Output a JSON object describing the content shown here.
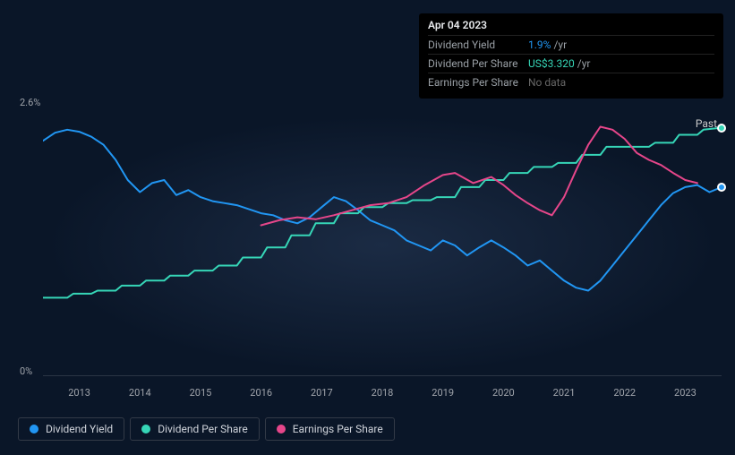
{
  "chart": {
    "type": "line",
    "background_color": "#0a1628",
    "plot_bg_glow": "rgba(34,52,80,0.7)",
    "text_color": "#a0a4ab",
    "axis_color": "#2a3544",
    "ylim": [
      0,
      2.6
    ],
    "y_ticks": [
      {
        "v": 2.6,
        "label": "2.6%"
      },
      {
        "v": 0,
        "label": "0%"
      }
    ],
    "x_domain_years": [
      2012.4,
      2023.6
    ],
    "x_labels": [
      "2013",
      "2014",
      "2015",
      "2016",
      "2017",
      "2018",
      "2019",
      "2020",
      "2021",
      "2022",
      "2023"
    ],
    "past_label": "Past",
    "marker_ring_color": "#ffffff",
    "series": {
      "dividend_yield": {
        "label": "Dividend Yield",
        "color": "#2196f3",
        "line_width": 2,
        "points": [
          [
            2012.4,
            2.34
          ],
          [
            2012.6,
            2.42
          ],
          [
            2012.8,
            2.45
          ],
          [
            2013.0,
            2.43
          ],
          [
            2013.2,
            2.38
          ],
          [
            2013.4,
            2.3
          ],
          [
            2013.6,
            2.15
          ],
          [
            2013.8,
            1.95
          ],
          [
            2014.0,
            1.83
          ],
          [
            2014.2,
            1.92
          ],
          [
            2014.4,
            1.95
          ],
          [
            2014.6,
            1.8
          ],
          [
            2014.8,
            1.85
          ],
          [
            2015.0,
            1.78
          ],
          [
            2015.2,
            1.74
          ],
          [
            2015.4,
            1.72
          ],
          [
            2015.6,
            1.7
          ],
          [
            2015.8,
            1.66
          ],
          [
            2016.0,
            1.62
          ],
          [
            2016.2,
            1.6
          ],
          [
            2016.4,
            1.55
          ],
          [
            2016.6,
            1.52
          ],
          [
            2016.8,
            1.58
          ],
          [
            2017.0,
            1.68
          ],
          [
            2017.2,
            1.78
          ],
          [
            2017.4,
            1.74
          ],
          [
            2017.6,
            1.65
          ],
          [
            2017.8,
            1.55
          ],
          [
            2018.0,
            1.5
          ],
          [
            2018.2,
            1.45
          ],
          [
            2018.4,
            1.35
          ],
          [
            2018.6,
            1.3
          ],
          [
            2018.8,
            1.25
          ],
          [
            2019.0,
            1.35
          ],
          [
            2019.2,
            1.3
          ],
          [
            2019.4,
            1.2
          ],
          [
            2019.6,
            1.28
          ],
          [
            2019.8,
            1.35
          ],
          [
            2020.0,
            1.28
          ],
          [
            2020.2,
            1.2
          ],
          [
            2020.4,
            1.1
          ],
          [
            2020.6,
            1.15
          ],
          [
            2020.8,
            1.05
          ],
          [
            2021.0,
            0.95
          ],
          [
            2021.2,
            0.88
          ],
          [
            2021.4,
            0.85
          ],
          [
            2021.6,
            0.95
          ],
          [
            2021.8,
            1.1
          ],
          [
            2022.0,
            1.25
          ],
          [
            2022.2,
            1.4
          ],
          [
            2022.4,
            1.55
          ],
          [
            2022.6,
            1.7
          ],
          [
            2022.8,
            1.82
          ],
          [
            2023.0,
            1.88
          ],
          [
            2023.2,
            1.9
          ],
          [
            2023.4,
            1.83
          ],
          [
            2023.6,
            1.88
          ]
        ]
      },
      "dividend_per_share": {
        "label": "Dividend Per Share",
        "color": "#36d6b7",
        "line_width": 2,
        "points": [
          [
            2012.4,
            0.78
          ],
          [
            2012.8,
            0.78
          ],
          [
            2012.9,
            0.82
          ],
          [
            2013.2,
            0.82
          ],
          [
            2013.3,
            0.85
          ],
          [
            2013.6,
            0.85
          ],
          [
            2013.7,
            0.9
          ],
          [
            2014.0,
            0.9
          ],
          [
            2014.1,
            0.95
          ],
          [
            2014.4,
            0.95
          ],
          [
            2014.5,
            1.0
          ],
          [
            2014.8,
            1.0
          ],
          [
            2014.9,
            1.05
          ],
          [
            2015.2,
            1.05
          ],
          [
            2015.3,
            1.1
          ],
          [
            2015.6,
            1.1
          ],
          [
            2015.7,
            1.18
          ],
          [
            2016.0,
            1.18
          ],
          [
            2016.1,
            1.28
          ],
          [
            2016.4,
            1.28
          ],
          [
            2016.5,
            1.4
          ],
          [
            2016.8,
            1.4
          ],
          [
            2016.9,
            1.52
          ],
          [
            2017.2,
            1.52
          ],
          [
            2017.3,
            1.62
          ],
          [
            2017.6,
            1.62
          ],
          [
            2017.7,
            1.68
          ],
          [
            2018.0,
            1.68
          ],
          [
            2018.1,
            1.72
          ],
          [
            2018.4,
            1.72
          ],
          [
            2018.5,
            1.75
          ],
          [
            2018.8,
            1.75
          ],
          [
            2018.9,
            1.78
          ],
          [
            2019.2,
            1.78
          ],
          [
            2019.3,
            1.88
          ],
          [
            2019.6,
            1.88
          ],
          [
            2019.7,
            1.95
          ],
          [
            2020.0,
            1.95
          ],
          [
            2020.1,
            2.02
          ],
          [
            2020.4,
            2.02
          ],
          [
            2020.5,
            2.08
          ],
          [
            2020.8,
            2.08
          ],
          [
            2020.9,
            2.12
          ],
          [
            2021.2,
            2.12
          ],
          [
            2021.3,
            2.2
          ],
          [
            2021.6,
            2.2
          ],
          [
            2021.7,
            2.28
          ],
          [
            2022.0,
            2.28
          ],
          [
            2022.1,
            2.28
          ],
          [
            2022.4,
            2.28
          ],
          [
            2022.5,
            2.32
          ],
          [
            2022.8,
            2.32
          ],
          [
            2022.9,
            2.4
          ],
          [
            2023.2,
            2.4
          ],
          [
            2023.3,
            2.45
          ],
          [
            2023.6,
            2.47
          ]
        ]
      },
      "earnings_per_share": {
        "label": "Earnings Per Share",
        "color": "#e6468a",
        "line_width": 2,
        "points": [
          [
            2016.0,
            1.5
          ],
          [
            2016.3,
            1.55
          ],
          [
            2016.6,
            1.58
          ],
          [
            2016.9,
            1.56
          ],
          [
            2017.2,
            1.6
          ],
          [
            2017.5,
            1.65
          ],
          [
            2017.8,
            1.7
          ],
          [
            2018.1,
            1.72
          ],
          [
            2018.4,
            1.78
          ],
          [
            2018.7,
            1.9
          ],
          [
            2019.0,
            2.0
          ],
          [
            2019.2,
            2.02
          ],
          [
            2019.5,
            1.92
          ],
          [
            2019.8,
            1.98
          ],
          [
            2020.0,
            1.9
          ],
          [
            2020.2,
            1.8
          ],
          [
            2020.4,
            1.72
          ],
          [
            2020.6,
            1.65
          ],
          [
            2020.8,
            1.6
          ],
          [
            2021.0,
            1.78
          ],
          [
            2021.2,
            2.05
          ],
          [
            2021.4,
            2.3
          ],
          [
            2021.6,
            2.48
          ],
          [
            2021.8,
            2.45
          ],
          [
            2022.0,
            2.36
          ],
          [
            2022.2,
            2.22
          ],
          [
            2022.4,
            2.15
          ],
          [
            2022.6,
            2.1
          ],
          [
            2022.8,
            2.02
          ],
          [
            2023.0,
            1.95
          ],
          [
            2023.2,
            1.92
          ]
        ]
      }
    },
    "end_markers": [
      {
        "series": "dividend_per_share",
        "x": 2023.6,
        "y": 2.47
      },
      {
        "series": "dividend_yield",
        "x": 2023.6,
        "y": 1.88
      }
    ]
  },
  "tooltip": {
    "date": "Apr 04 2023",
    "rows": [
      {
        "label": "Dividend Yield",
        "value": "1.9%",
        "suffix": "/yr",
        "color": "#2196f3"
      },
      {
        "label": "Dividend Per Share",
        "value": "US$3.320",
        "suffix": "/yr",
        "color": "#36d6b7"
      },
      {
        "label": "Earnings Per Share",
        "value": "No data",
        "suffix": "",
        "color": "#666666"
      }
    ]
  },
  "legend": [
    {
      "label": "Dividend Yield",
      "color": "#2196f3"
    },
    {
      "label": "Dividend Per Share",
      "color": "#36d6b7"
    },
    {
      "label": "Earnings Per Share",
      "color": "#e6468a"
    }
  ]
}
